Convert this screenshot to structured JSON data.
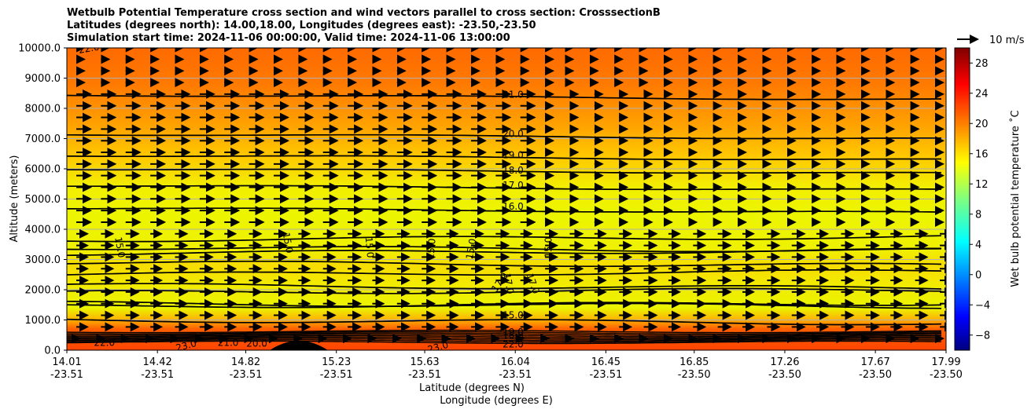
{
  "chart_data": {
    "type": "contour",
    "title_lines": [
      "Wetbulb Potential Temperature cross section and wind vectors parallel to cross section: CrosssectionB",
      "Latitudes (degrees north): 14.00,18.00, Longitudes (degrees east): -23.50,-23.50",
      "Simulation start time: 2024-11-06 00:00:00, Valid time: 2024-11-06 13:00:00"
    ],
    "ylabel": "Altitude (meters)",
    "xlabel_lat": "Latitude (degrees N)",
    "xlabel_lon": "Longitude (degrees E)",
    "ylim": [
      0,
      10000
    ],
    "y_ticks": [
      "0.0",
      "1000.0",
      "2000.0",
      "3000.0",
      "4000.0",
      "5000.0",
      "6000.0",
      "7000.0",
      "8000.0",
      "9000.0",
      "10000.0"
    ],
    "x_range_lat": [
      14.01,
      17.99
    ],
    "x_ticks": [
      {
        "lat": "14.01",
        "lon": "-23.51"
      },
      {
        "lat": "14.42",
        "lon": "-23.51"
      },
      {
        "lat": "14.82",
        "lon": "-23.51"
      },
      {
        "lat": "15.23",
        "lon": "-23.51"
      },
      {
        "lat": "15.63",
        "lon": "-23.51"
      },
      {
        "lat": "16.04",
        "lon": "-23.51"
      },
      {
        "lat": "16.45",
        "lon": "-23.51"
      },
      {
        "lat": "16.85",
        "lon": "-23.50"
      },
      {
        "lat": "17.26",
        "lon": "-23.50"
      },
      {
        "lat": "17.67",
        "lon": "-23.50"
      },
      {
        "lat": "17.99",
        "lon": "-23.50"
      }
    ],
    "colorbar": {
      "label": "Wet bulb potential temperature ˚C",
      "range": [
        -10,
        30
      ],
      "ticks": [
        "−8",
        "−4",
        "0",
        "4",
        "8",
        "12",
        "16",
        "20",
        "24",
        "28"
      ]
    },
    "wind_key": "10 m/s",
    "contours": [
      {
        "value": "21.0",
        "alt": 8450
      },
      {
        "value": "20.0",
        "alt": 7150
      },
      {
        "value": "19.0",
        "alt": 6450
      },
      {
        "value": "18.0",
        "alt": 6000
      },
      {
        "value": "17.0",
        "alt": 5450
      },
      {
        "value": "16.0",
        "alt": 4700
      }
    ],
    "contour_labels": [
      {
        "text": "21.0",
        "lat": 16.03,
        "alt": 8450,
        "rot": 0
      },
      {
        "text": "20.0",
        "lat": 16.03,
        "alt": 7150,
        "rot": 0
      },
      {
        "text": "19.0",
        "lat": 16.03,
        "alt": 6450,
        "rot": 0
      },
      {
        "text": "18.0",
        "lat": 16.03,
        "alt": 5950,
        "rot": 0
      },
      {
        "text": "17.0",
        "lat": 16.03,
        "alt": 5450,
        "rot": 0
      },
      {
        "text": "16.0",
        "lat": 16.03,
        "alt": 4750,
        "rot": 0
      },
      {
        "text": "15.0",
        "lat": 14.25,
        "alt": 3400,
        "rot": 80
      },
      {
        "text": "15.0",
        "lat": 15.01,
        "alt": 3550,
        "rot": 80
      },
      {
        "text": "15.0",
        "lat": 15.38,
        "alt": 3400,
        "rot": 85
      },
      {
        "text": "15.0",
        "lat": 15.66,
        "alt": 3350,
        "rot": -85
      },
      {
        "text": "15.0",
        "lat": 15.84,
        "alt": 3350,
        "rot": -80
      },
      {
        "text": "15.0",
        "lat": 16.19,
        "alt": 3400,
        "rot": -90
      },
      {
        "text": "17.0",
        "lat": 15.97,
        "alt": 2250,
        "rot": -55
      },
      {
        "text": "17.0",
        "lat": 16.01,
        "alt": 2200,
        "rot": 80
      },
      {
        "text": "17.0",
        "lat": 16.12,
        "alt": 2200,
        "rot": 70
      },
      {
        "text": "15.0",
        "lat": 16.03,
        "alt": 1150,
        "rot": 0
      },
      {
        "text": "19.0",
        "lat": 16.03,
        "alt": 600,
        "rot": 0
      },
      {
        "text": "16.0",
        "lat": 16.03,
        "alt": 480,
        "rot": 0
      },
      {
        "text": "22.0",
        "lat": 16.03,
        "alt": 200,
        "rot": 0
      },
      {
        "text": "22.0",
        "lat": 14.18,
        "alt": 250,
        "rot": 0
      },
      {
        "text": "21.0",
        "lat": 14.74,
        "alt": 250,
        "rot": 0
      },
      {
        "text": "20.0",
        "lat": 14.87,
        "alt": 220,
        "rot": 0
      },
      {
        "text": "23.0",
        "lat": 14.55,
        "alt": 150,
        "rot": -15
      },
      {
        "text": "23.0",
        "lat": 15.69,
        "alt": 100,
        "rot": -15
      },
      {
        "text": "22.0",
        "lat": 14.11,
        "alt": 9980,
        "rot": -10
      }
    ]
  }
}
